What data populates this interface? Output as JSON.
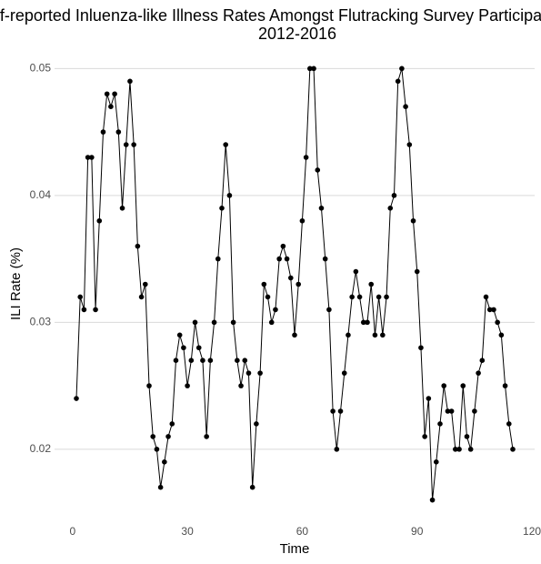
{
  "chart_data": {
    "type": "line",
    "title": [
      "Self-reported Inluenza-like Illness Rates Amongst Flutracking Survey Participants",
      "2012-2016"
    ],
    "x_label": "Time",
    "y_label": "ILI Rate (%)",
    "x": [
      1,
      2,
      3,
      4,
      5,
      6,
      7,
      8,
      9,
      10,
      11,
      12,
      13,
      14,
      15,
      16,
      17,
      18,
      19,
      20,
      21,
      22,
      23,
      24,
      25,
      26,
      27,
      28,
      29,
      30,
      31,
      32,
      33,
      34,
      35,
      36,
      37,
      38,
      39,
      40,
      41,
      42,
      43,
      44,
      45,
      46,
      47,
      48,
      49,
      50,
      51,
      52,
      53,
      54,
      55,
      56,
      57,
      58,
      59,
      60,
      61,
      62,
      63,
      64,
      65,
      66,
      67,
      68,
      69,
      70,
      71,
      72,
      73,
      74,
      75,
      76,
      77,
      78,
      79,
      80,
      81,
      82,
      83,
      84,
      85,
      86,
      87,
      88,
      89,
      90,
      91,
      92,
      93,
      94,
      95,
      96,
      97,
      98,
      99,
      100,
      101,
      102,
      103,
      104,
      105,
      106,
      107,
      108,
      109,
      110,
      111,
      112,
      113,
      114,
      115
    ],
    "series": [
      {
        "name": "ILI Rate",
        "color": "#000000",
        "values": [
          0.024,
          0.032,
          0.031,
          0.043,
          0.043,
          0.031,
          0.038,
          0.045,
          0.048,
          0.047,
          0.048,
          0.045,
          0.039,
          0.044,
          0.049,
          0.044,
          0.036,
          0.032,
          0.033,
          0.025,
          0.021,
          0.02,
          0.017,
          0.019,
          0.021,
          0.022,
          0.027,
          0.029,
          0.028,
          0.025,
          0.027,
          0.03,
          0.028,
          0.027,
          0.021,
          0.027,
          0.03,
          0.035,
          0.039,
          0.044,
          0.04,
          0.03,
          0.027,
          0.025,
          0.027,
          0.026,
          0.017,
          0.022,
          0.026,
          0.033,
          0.032,
          0.03,
          0.031,
          0.035,
          0.036,
          0.035,
          0.0335,
          0.029,
          0.033,
          0.038,
          0.043,
          0.05,
          0.05,
          0.042,
          0.039,
          0.035,
          0.031,
          0.023,
          0.02,
          0.023,
          0.026,
          0.029,
          0.032,
          0.034,
          0.032,
          0.03,
          0.03,
          0.033,
          0.029,
          0.032,
          0.029,
          0.032,
          0.039,
          0.04,
          0.049,
          0.05,
          0.047,
          0.044,
          0.038,
          0.034,
          0.028,
          0.021,
          0.024,
          0.016,
          0.019,
          0.022,
          0.025,
          0.023,
          0.023,
          0.02,
          0.02,
          0.025,
          0.021,
          0.02,
          0.023,
          0.026,
          0.027,
          0.032,
          0.031,
          0.031,
          0.03,
          0.029,
          0.025,
          0.022,
          0.02
        ]
      }
    ],
    "xlim": [
      -4.7,
      120.7
    ],
    "xticks": [
      0,
      30,
      60,
      90,
      120
    ],
    "ylim": [
      0.0149,
      0.0511
    ],
    "yticks": [
      0.02,
      0.03,
      0.04,
      0.05
    ],
    "grid": true
  }
}
